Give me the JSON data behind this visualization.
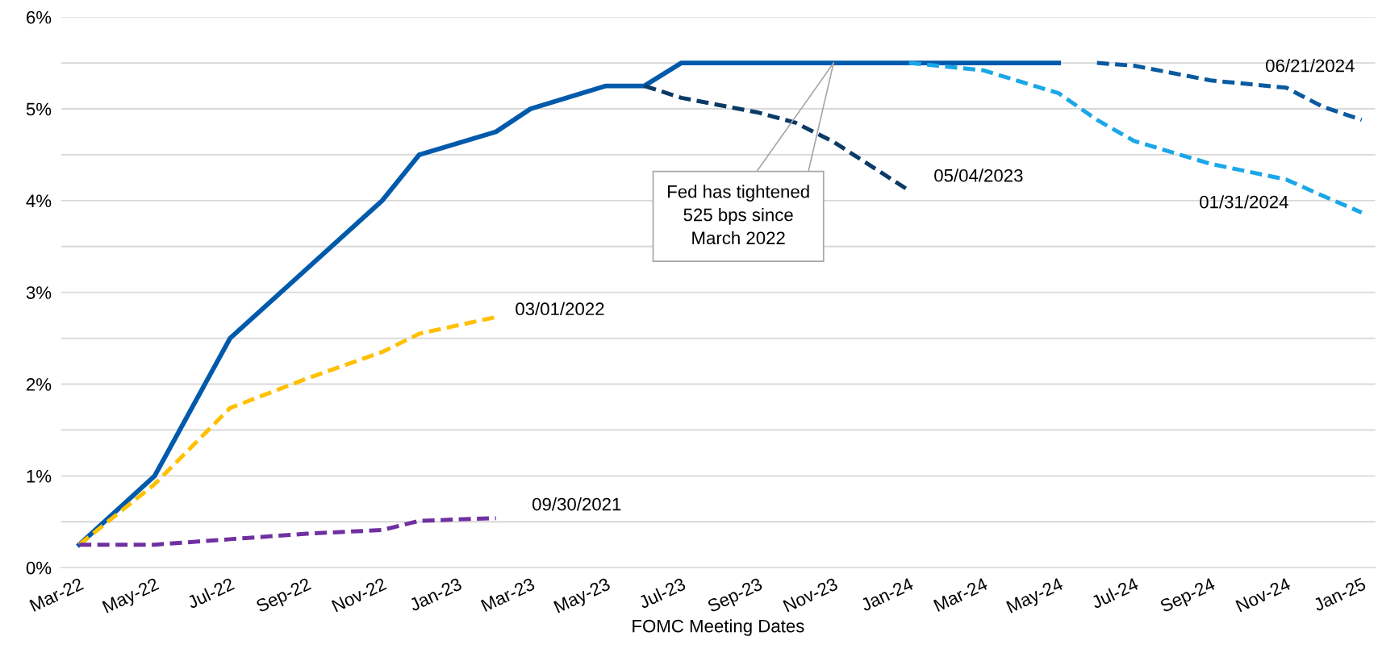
{
  "chart_data": {
    "type": "line",
    "xlabel": "FOMC Meeting Dates",
    "series": [
      {
        "color": "#005aab",
        "line_style": "solid",
        "x": [
          "2022-03",
          "2022-05",
          "2022-07",
          "2022-11",
          "2022-12",
          "2023-02",
          "2023-03",
          "2023-05",
          "2023-06",
          "2023-07",
          "2024-05"
        ],
        "values": [
          0.25,
          1.0,
          2.5,
          4.0,
          4.5,
          4.75,
          5.0,
          5.25,
          5.25,
          5.5,
          5.5
        ]
      },
      {
        "name": "03/01/2022",
        "color": "#ffc000",
        "line_style": "dashed",
        "x": [
          "2022-03",
          "2022-05",
          "2022-07",
          "2022-09",
          "2022-11",
          "2022-12",
          "2023-02"
        ],
        "values": [
          0.25,
          0.91,
          1.74,
          2.06,
          2.35,
          2.55,
          2.73
        ]
      },
      {
        "name": "09/30/2021",
        "color": "#7030a0",
        "line_style": "dashed",
        "x": [
          "2022-03",
          "2022-05",
          "2022-07",
          "2022-09",
          "2022-11",
          "2022-12",
          "2023-02"
        ],
        "values": [
          0.25,
          0.25,
          0.31,
          0.37,
          0.41,
          0.51,
          0.54
        ]
      },
      {
        "name": "05/04/2023",
        "color": "#0b3a66",
        "line_style": "dashed",
        "x": [
          "2023-06",
          "2023-07",
          "2023-09",
          "2023-10",
          "2023-11",
          "2023-12",
          "2024-01"
        ],
        "values": [
          5.25,
          5.12,
          4.96,
          4.85,
          4.64,
          4.38,
          4.11
        ]
      },
      {
        "name": "01/31/2024",
        "color": "#1aa7e8",
        "line_style": "dashed",
        "x": [
          "2024-01",
          "2024-03",
          "2024-05",
          "2024-06",
          "2024-07",
          "2024-09",
          "2024-11",
          "2024-12",
          "2025-01"
        ],
        "values": [
          5.5,
          5.42,
          5.17,
          4.88,
          4.65,
          4.4,
          4.23,
          4.05,
          3.87
        ]
      },
      {
        "name": "06/21/2024",
        "color": "#0a5aa0",
        "line_style": "dashed",
        "x": [
          "2024-06",
          "2024-07",
          "2024-09",
          "2024-11",
          "2024-12",
          "2025-01"
        ],
        "values": [
          5.5,
          5.47,
          5.31,
          5.23,
          5.02,
          4.88
        ]
      }
    ],
    "annotations": [
      {
        "text": "Fed has tightened\n525 bps since\nMarch 2022",
        "x": "2023-11",
        "y": 5.5
      }
    ],
    "xlim": [
      "2022-02-14",
      "2025-01-12"
    ],
    "xticks": [
      {
        "value": "2022-03",
        "label": "Mar-22"
      },
      {
        "value": "2022-05",
        "label": "May-22"
      },
      {
        "value": "2022-07",
        "label": "Jul-22"
      },
      {
        "value": "2022-09",
        "label": "Sep-22"
      },
      {
        "value": "2022-11",
        "label": "Nov-22"
      },
      {
        "value": "2023-01",
        "label": "Jan-23"
      },
      {
        "value": "2023-03",
        "label": "Mar-23"
      },
      {
        "value": "2023-05",
        "label": "May-23"
      },
      {
        "value": "2023-07",
        "label": "Jul-23"
      },
      {
        "value": "2023-09",
        "label": "Sep-23"
      },
      {
        "value": "2023-11",
        "label": "Nov-23"
      },
      {
        "value": "2024-01",
        "label": "Jan-24"
      },
      {
        "value": "2024-03",
        "label": "Mar-24"
      },
      {
        "value": "2024-05",
        "label": "May-24"
      },
      {
        "value": "2024-07",
        "label": "Jul-24"
      },
      {
        "value": "2024-09",
        "label": "Sep-24"
      },
      {
        "value": "2024-11",
        "label": "Nov-24"
      },
      {
        "value": "2025-01",
        "label": "Jan-25"
      }
    ],
    "ylim": [
      0,
      6
    ],
    "yticks": [
      {
        "value": 0,
        "label": "0%"
      },
      {
        "value": 0.5,
        "label": null
      },
      {
        "value": 1,
        "label": "1%"
      },
      {
        "value": 1.5,
        "label": null
      },
      {
        "value": 2,
        "label": "2%"
      },
      {
        "value": 2.5,
        "label": null
      },
      {
        "value": 3,
        "label": "3%"
      },
      {
        "value": 3.5,
        "label": null
      },
      {
        "value": 4,
        "label": "4%"
      },
      {
        "value": 4.5,
        "label": null
      },
      {
        "value": 5,
        "label": "5%"
      },
      {
        "value": 5.5,
        "label": null
      },
      {
        "value": 6,
        "label": "6%"
      }
    ],
    "grid": "y",
    "legend": false
  }
}
